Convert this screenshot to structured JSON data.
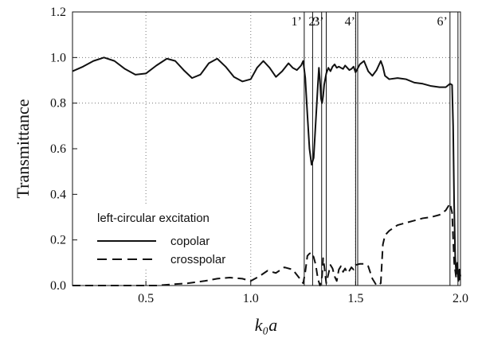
{
  "chart_data": {
    "type": "line",
    "xlabel": "k₀a",
    "ylabel": "Transmittance",
    "xlim": [
      0.15,
      2.0
    ],
    "ylim": [
      0.0,
      1.2
    ],
    "x_ticks": [
      0.5,
      1.0,
      1.5,
      2.0
    ],
    "x_tick_labels": [
      "0.5",
      "1.0",
      "1.5",
      "2.0"
    ],
    "y_ticks": [
      0.0,
      0.2,
      0.4,
      0.6,
      0.8,
      1.0,
      1.2
    ],
    "y_tick_labels": [
      "0.0",
      "0.2",
      "0.4",
      "0.6",
      "0.8",
      "1.0",
      "1.2"
    ],
    "grid": "dotted, at x=0.5, 1.0, 1.5 and y=1.0, 0.8 (partial)",
    "legend": {
      "title": "left-circular excitation",
      "placement": "bottom-left",
      "entries": [
        {
          "label": "copolar",
          "style": "solid"
        },
        {
          "label": "crosspolar",
          "style": "dashed"
        }
      ]
    },
    "vertical_lines": [
      {
        "x": 1.255,
        "label": "1’"
      },
      {
        "x": 1.295,
        "label": ""
      },
      {
        "x": 1.338,
        "label": "2’"
      },
      {
        "x": 1.36,
        "label": "3’"
      },
      {
        "x": 1.5,
        "label": ""
      },
      {
        "x": 1.51,
        "label": "4’"
      },
      {
        "x": 1.95,
        "label": "6’"
      },
      {
        "x": 1.988,
        "label": ""
      }
    ],
    "series": [
      {
        "name": "copolar",
        "style": "solid",
        "x": [
          0.15,
          0.2,
          0.25,
          0.3,
          0.35,
          0.4,
          0.45,
          0.5,
          0.55,
          0.6,
          0.64,
          0.68,
          0.72,
          0.76,
          0.8,
          0.84,
          0.88,
          0.92,
          0.96,
          1.0,
          1.03,
          1.06,
          1.09,
          1.12,
          1.15,
          1.18,
          1.2,
          1.22,
          1.24,
          1.25,
          1.26,
          1.27,
          1.28,
          1.29,
          1.3,
          1.31,
          1.32,
          1.325,
          1.33,
          1.335,
          1.34,
          1.345,
          1.35,
          1.36,
          1.37,
          1.38,
          1.39,
          1.4,
          1.41,
          1.42,
          1.43,
          1.44,
          1.45,
          1.46,
          1.47,
          1.48,
          1.49,
          1.5,
          1.52,
          1.54,
          1.56,
          1.58,
          1.6,
          1.62,
          1.63,
          1.64,
          1.66,
          1.7,
          1.74,
          1.78,
          1.82,
          1.86,
          1.9,
          1.93,
          1.95,
          1.96,
          1.965,
          1.97,
          1.975,
          1.98,
          1.985,
          1.99,
          1.995,
          2.0
        ],
        "y": [
          0.94,
          0.96,
          0.985,
          1.0,
          0.985,
          0.95,
          0.925,
          0.93,
          0.965,
          0.995,
          0.985,
          0.945,
          0.91,
          0.925,
          0.975,
          0.995,
          0.96,
          0.915,
          0.895,
          0.905,
          0.955,
          0.985,
          0.955,
          0.915,
          0.94,
          0.975,
          0.955,
          0.945,
          0.965,
          0.985,
          0.91,
          0.75,
          0.6,
          0.53,
          0.56,
          0.72,
          0.88,
          0.955,
          0.9,
          0.82,
          0.8,
          0.83,
          0.88,
          0.93,
          0.955,
          0.94,
          0.96,
          0.97,
          0.955,
          0.96,
          0.955,
          0.95,
          0.965,
          0.955,
          0.945,
          0.95,
          0.96,
          0.935,
          0.97,
          0.985,
          0.94,
          0.92,
          0.945,
          0.985,
          0.96,
          0.92,
          0.905,
          0.91,
          0.905,
          0.89,
          0.885,
          0.875,
          0.87,
          0.87,
          0.885,
          0.88,
          0.7,
          0.35,
          0.12,
          0.05,
          0.1,
          0.02,
          0.07,
          0.04
        ]
      },
      {
        "name": "crosspolar",
        "style": "dashed",
        "x": [
          0.15,
          0.3,
          0.45,
          0.55,
          0.62,
          0.7,
          0.78,
          0.84,
          0.9,
          0.96,
          1.0,
          1.04,
          1.08,
          1.12,
          1.16,
          1.2,
          1.23,
          1.25,
          1.26,
          1.27,
          1.28,
          1.29,
          1.3,
          1.31,
          1.32,
          1.33,
          1.34,
          1.345,
          1.35,
          1.36,
          1.37,
          1.38,
          1.39,
          1.4,
          1.41,
          1.42,
          1.43,
          1.44,
          1.45,
          1.46,
          1.47,
          1.48,
          1.49,
          1.5,
          1.52,
          1.54,
          1.56,
          1.58,
          1.6,
          1.62,
          1.63,
          1.64,
          1.66,
          1.7,
          1.74,
          1.78,
          1.82,
          1.86,
          1.9,
          1.93,
          1.95,
          1.96,
          1.97,
          1.98,
          1.99,
          2.0
        ],
        "y": [
          0.0,
          0.0,
          0.0,
          0.0,
          0.005,
          0.01,
          0.02,
          0.03,
          0.035,
          0.03,
          0.02,
          0.04,
          0.065,
          0.055,
          0.08,
          0.07,
          0.035,
          0.01,
          0.06,
          0.13,
          0.14,
          0.145,
          0.125,
          0.09,
          0.03,
          0.0,
          0.04,
          0.12,
          0.09,
          0.01,
          0.05,
          0.09,
          0.075,
          0.04,
          0.02,
          0.07,
          0.085,
          0.06,
          0.075,
          0.055,
          0.065,
          0.08,
          0.07,
          0.09,
          0.095,
          0.095,
          0.085,
          0.03,
          0.0,
          0.01,
          0.18,
          0.22,
          0.24,
          0.265,
          0.275,
          0.285,
          0.295,
          0.3,
          0.31,
          0.33,
          0.36,
          0.32,
          0.1,
          0.03,
          0.05,
          0.02
        ]
      }
    ]
  }
}
